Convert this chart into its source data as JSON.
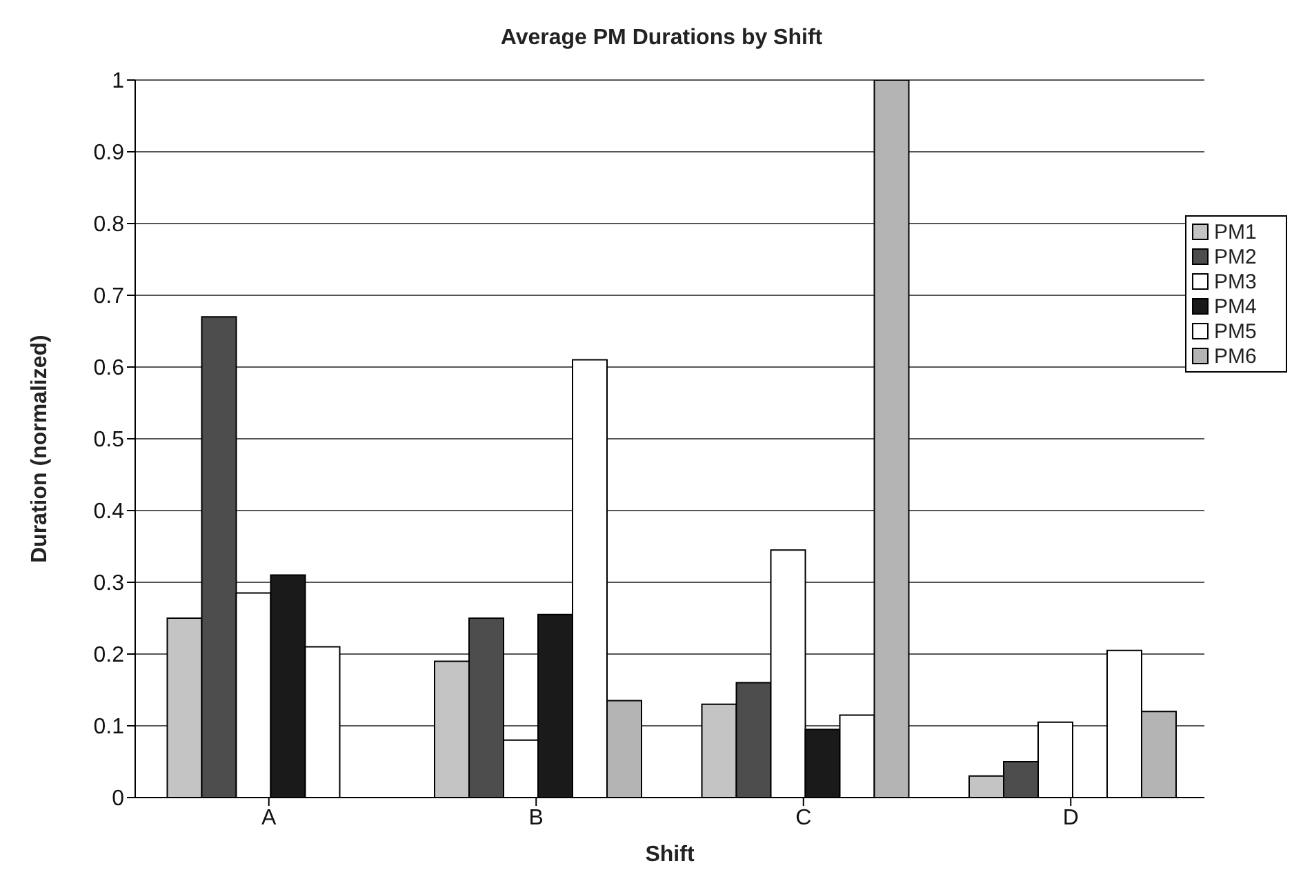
{
  "chart_data": {
    "type": "bar",
    "title": "Average PM Durations by Shift",
    "xlabel": "Shift",
    "ylabel": "Duration (normalized)",
    "categories": [
      "A",
      "B",
      "C",
      "D"
    ],
    "series": [
      {
        "name": "PM1",
        "color": "#c4c4c4",
        "values": [
          0.25,
          0.19,
          0.13,
          0.03
        ]
      },
      {
        "name": "PM2",
        "color": "#4d4d4d",
        "values": [
          0.67,
          0.25,
          0.16,
          0.05
        ]
      },
      {
        "name": "PM3",
        "color": "#ffffff",
        "values": [
          0.285,
          0.08,
          0.345,
          0.105
        ]
      },
      {
        "name": "PM4",
        "color": "#1a1a1a",
        "values": [
          0.31,
          0.255,
          0.095,
          null
        ]
      },
      {
        "name": "PM5",
        "color": "#ffffff",
        "values": [
          0.21,
          0.61,
          0.115,
          0.205
        ]
      },
      {
        "name": "PM6",
        "color": "#b4b4b4",
        "values": [
          null,
          0.135,
          1.0,
          0.12
        ]
      }
    ],
    "ylim": [
      0,
      1
    ],
    "yticks": [
      0,
      0.1,
      0.2,
      0.3,
      0.4,
      0.5,
      0.6,
      0.7,
      0.8,
      0.9,
      1
    ],
    "grid": "y",
    "legend": "right"
  }
}
